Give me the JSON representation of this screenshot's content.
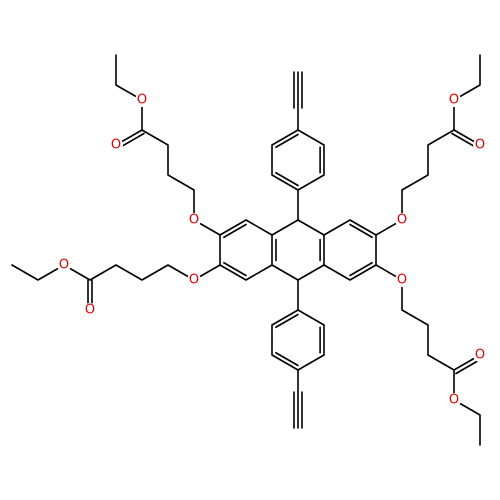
{
  "atoms": [
    {
      "label": "O"
    },
    {
      "label": "O"
    },
    {
      "label": "O"
    },
    {
      "label": "O"
    },
    {
      "label": "O"
    },
    {
      "label": "O"
    },
    {
      "label": "O"
    },
    {
      "label": "O"
    },
    {
      "label": "O"
    },
    {
      "label": "O"
    },
    {
      "label": "O"
    },
    {
      "label": "O"
    }
  ]
}
